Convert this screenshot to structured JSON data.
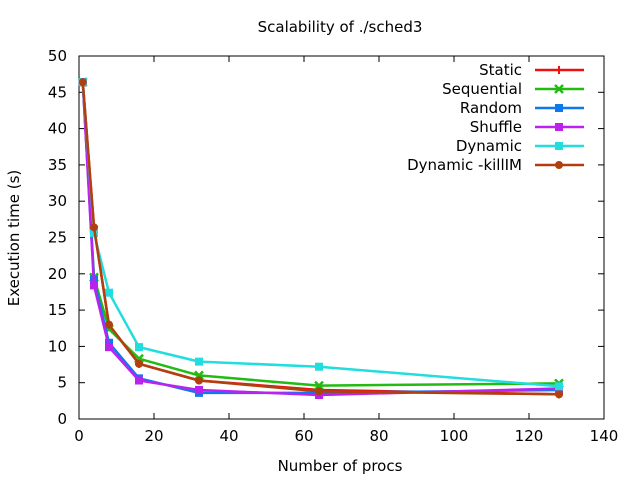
{
  "chart_data": {
    "type": "line",
    "title": "Scalability of ./sched3",
    "xlabel": "Number of procs",
    "ylabel": "Execution time (s)",
    "xlim": [
      0,
      140
    ],
    "ylim": [
      0,
      50
    ],
    "xticks": [
      "0",
      "20",
      "40",
      "60",
      "80",
      "100",
      "120",
      "140"
    ],
    "yticks": [
      "0",
      "5",
      "10",
      "15",
      "20",
      "25",
      "30",
      "35",
      "40",
      "45",
      "50"
    ],
    "grid": false,
    "legend_position": "top-right",
    "x": [
      1,
      4,
      8,
      16,
      32,
      64,
      128
    ],
    "series": [
      {
        "name": "Static",
        "color": "#ee1111",
        "marker": "plus",
        "values": [
          46.4,
          26.5,
          12.9,
          7.6,
          5.3,
          4.0,
          3.4
        ]
      },
      {
        "name": "Sequential",
        "color": "#22bb11",
        "marker": "cross",
        "values": [
          46.4,
          19.5,
          12.4,
          8.3,
          6.0,
          4.6,
          4.9
        ]
      },
      {
        "name": "Random",
        "color": "#1177ee",
        "marker": "square",
        "values": [
          46.4,
          19.2,
          10.5,
          5.6,
          3.6,
          3.6,
          4.0
        ]
      },
      {
        "name": "Shuffle",
        "color": "#bb22ee",
        "marker": "square",
        "values": [
          46.4,
          18.4,
          9.9,
          5.3,
          4.0,
          3.3,
          4.2
        ]
      },
      {
        "name": "Dynamic",
        "color": "#22dddd",
        "marker": "square",
        "values": [
          46.4,
          25.6,
          17.4,
          9.9,
          7.9,
          7.2,
          4.5
        ]
      },
      {
        "name": "Dynamic -killIM",
        "color": "#b04010",
        "marker": "circle",
        "values": [
          46.4,
          26.4,
          13.0,
          7.6,
          5.3,
          3.8,
          3.4
        ]
      }
    ]
  }
}
